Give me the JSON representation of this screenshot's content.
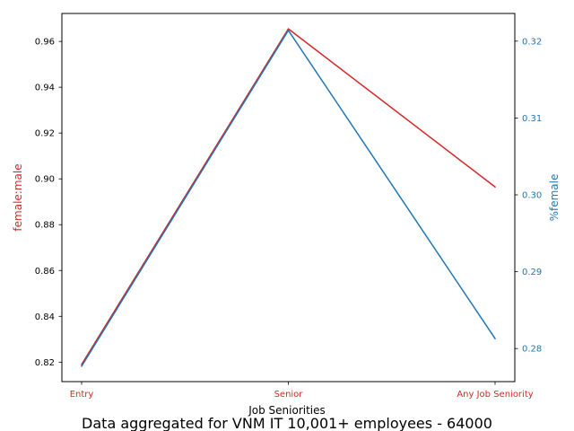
{
  "chart_data": {
    "type": "line",
    "title": "Data aggregated for VNM IT 10,001+ employees - 64000",
    "xlabel": "Job Seniorities",
    "categories": [
      "Entry",
      "Senior",
      "Any Job Seniority"
    ],
    "series": [
      {
        "name": "female:male",
        "axis": "left",
        "color": "#d62728",
        "ylabel": "female:male",
        "values": [
          0.819,
          0.9655,
          0.8965
        ],
        "ylim": [
          0.8115,
          0.9722
        ],
        "ticks": [
          0.82,
          0.84,
          0.86,
          0.88,
          0.9,
          0.92,
          0.94,
          0.96
        ],
        "tick_labels": [
          "0.82",
          "0.84",
          "0.86",
          "0.88",
          "0.90",
          "0.92",
          "0.94",
          "0.96"
        ]
      },
      {
        "name": "%female",
        "axis": "right",
        "color": "#1f77b4",
        "ylabel": "%⁠female",
        "values": [
          0.2777,
          0.3214,
          0.2813
        ],
        "ylim": [
          0.2757,
          0.3236
        ],
        "ticks": [
          0.28,
          0.29,
          0.3,
          0.31,
          0.32
        ],
        "tick_labels": [
          "0.28",
          "0.29",
          "0.30",
          "0.31",
          "0.32"
        ]
      }
    ],
    "colors": {
      "axis": "#000000",
      "category_labels": "#d62728"
    }
  }
}
